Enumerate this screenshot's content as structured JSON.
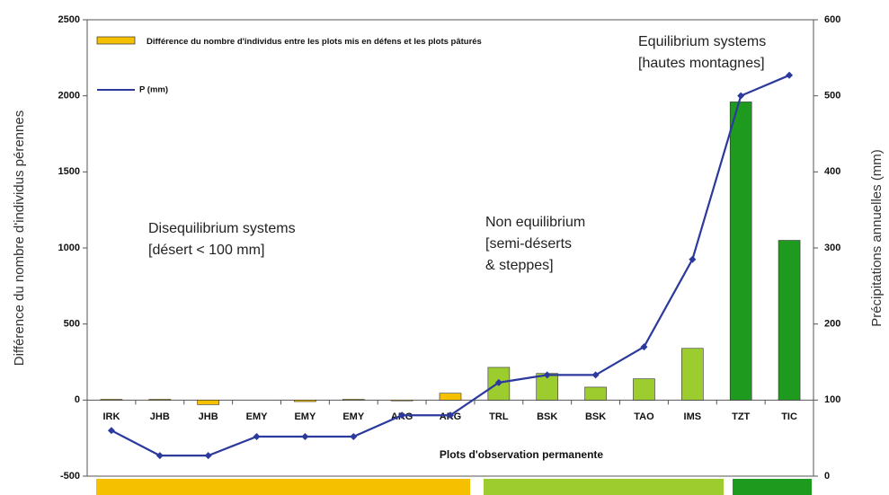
{
  "chart_data": {
    "type": "bar_line",
    "categories": [
      "IRK",
      "JHB",
      "JHB",
      "EMY",
      "EMY",
      "EMY",
      "ARG",
      "ARG",
      "TRL",
      "BSK",
      "BSK",
      "TAO",
      "IMS",
      "TZT",
      "TIC"
    ],
    "series": [
      {
        "name": "Différence du nombre d'individus entre les plots mis en défens et les plots pâturés",
        "type": "bar",
        "color": "#f5c000",
        "point_colors": [
          "#f5c000",
          "#f5c000",
          "#f5c000",
          "#f5c000",
          "#f5c000",
          "#f5c000",
          "#f5c000",
          "#f5c000",
          "#9ccc2e",
          "#9ccc2e",
          "#9ccc2e",
          "#9ccc2e",
          "#9ccc2e",
          "#1e9a1e",
          "#1e9a1e"
        ],
        "values": [
          5,
          5,
          -30,
          0,
          -10,
          5,
          -5,
          45,
          215,
          175,
          85,
          140,
          340,
          1960,
          1050
        ]
      },
      {
        "name": "P (mm)",
        "type": "line",
        "axis": "y2",
        "color": "#2b3a9c",
        "values": [
          60,
          27,
          27,
          52,
          52,
          52,
          80,
          80,
          123,
          133,
          133,
          170,
          285,
          500,
          527
        ]
      }
    ],
    "ylim": [
      -500,
      2500
    ],
    "yticks": [
      -500,
      0,
      500,
      1000,
      1500,
      2000,
      2500
    ],
    "y2lim": [
      0,
      600
    ],
    "y2ticks": [
      0,
      100,
      200,
      300,
      400,
      500,
      600
    ],
    "ylabel": "Différence du nombre d'individus pérennes",
    "y2label": "Précipitations annuelles (mm)",
    "xlabel": "Plots d'observation permanente",
    "annotations": [
      {
        "lines": [
          "Disequilibrium systems",
          "[désert < 100 mm]"
        ]
      },
      {
        "lines": [
          "Non equilibrium",
          "[semi-déserts",
          "& steppes]"
        ]
      },
      {
        "lines": [
          "Equilibrium systems",
          "[hautes montagnes]"
        ]
      }
    ]
  }
}
